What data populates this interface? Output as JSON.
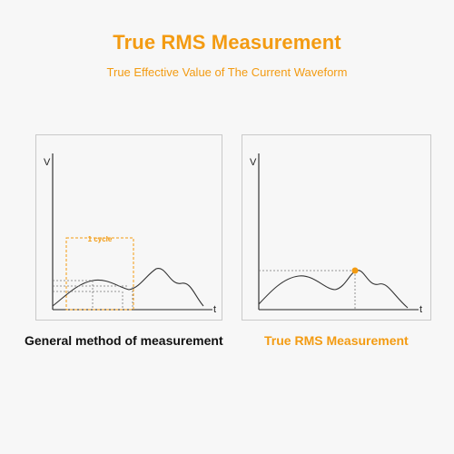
{
  "header": {
    "title": "True RMS Measurement",
    "subtitle": "True Effective Value of The Current Waveform"
  },
  "left_panel": {
    "y_axis_label": "V",
    "x_axis_label": "t",
    "cycle_label": "1 cycle",
    "caption": "General method of measurement"
  },
  "right_panel": {
    "y_axis_label": "V",
    "x_axis_label": "t",
    "caption": "True RMS Measurement"
  },
  "colors": {
    "accent": "#f39b12",
    "panel_border": "#c9c9c9",
    "waveform": "#333333",
    "guide": "#777777"
  }
}
